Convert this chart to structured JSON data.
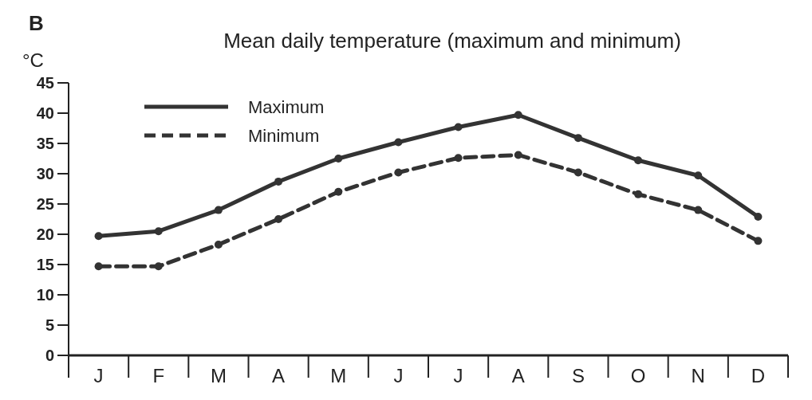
{
  "chart_data": {
    "type": "line",
    "title": "Mean daily temperature (maximum and minimum)",
    "ylabel": "°C",
    "annotations": [
      "B"
    ],
    "categories": [
      "J",
      "F",
      "M",
      "A",
      "M",
      "J",
      "J",
      "A",
      "S",
      "O",
      "N",
      "D"
    ],
    "series": [
      {
        "name": "Maximum",
        "color": "#333333",
        "line_style": "solid",
        "values": [
          19.7,
          20.5,
          24,
          28.7,
          32.5,
          35.2,
          37.7,
          39.7,
          35.9,
          32.2,
          29.7,
          22.9
        ]
      },
      {
        "name": "Minimum",
        "color": "#333333",
        "line_style": "dashed",
        "values": [
          14.7,
          14.7,
          18.3,
          22.5,
          27,
          30.2,
          32.6,
          33.1,
          30.2,
          26.6,
          24,
          18.9
        ]
      }
    ],
    "ylim": [
      0,
      45
    ],
    "yticks": [
      0,
      5,
      10,
      15,
      20,
      25,
      30,
      35,
      40,
      45
    ],
    "marker": "circle",
    "legend": "top left",
    "grid": false
  }
}
